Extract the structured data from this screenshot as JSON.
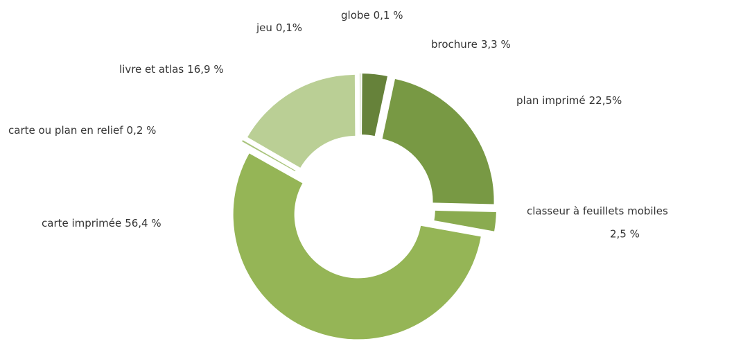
{
  "chart_data": {
    "type": "donut",
    "categories": [
      "globe",
      "brochure",
      "plan imprimé",
      "classeur à feuillets mobiles",
      "carte imprimée",
      "carte ou plan en relief",
      "livre et atlas",
      "jeu"
    ],
    "values": [
      0.1,
      3.3,
      22.5,
      2.5,
      56.4,
      0.2,
      16.9,
      0.1
    ],
    "value_labels": [
      "0,1 %",
      "3,3 %",
      "22,5%",
      "2,5 %",
      "56,4 %",
      "0,2 %",
      "16,9 %",
      "0,1%"
    ],
    "colors": [
      "#eef1e6",
      "#66823a",
      "#789944",
      "#8aab50",
      "#95b556",
      "#a9c47c",
      "#bacf95",
      "#d5e0c0"
    ]
  }
}
